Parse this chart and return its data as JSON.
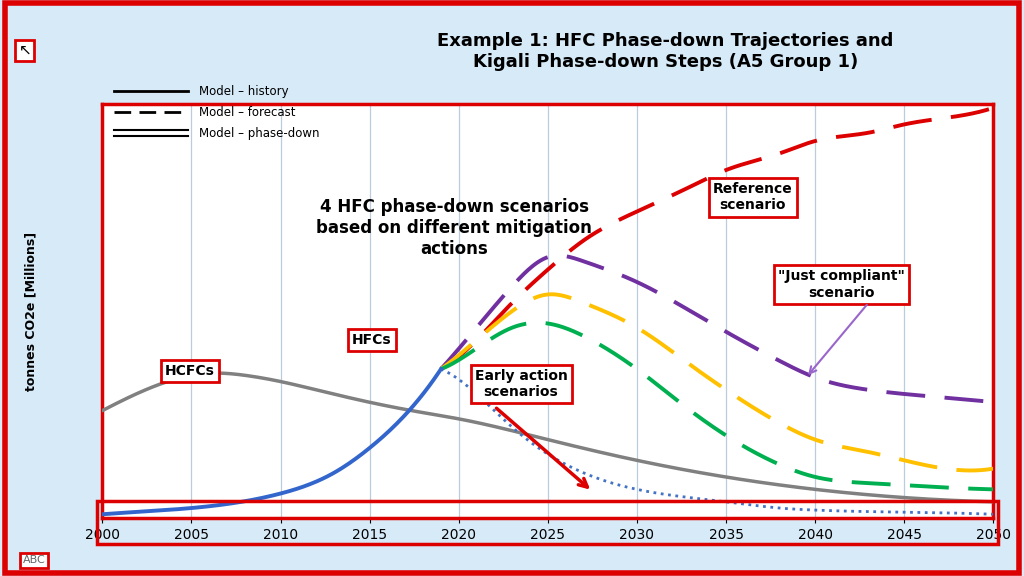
{
  "title": "Example 1: HFC Phase-down Trajectories and\nKigali Phase-down Steps (A5 Group 1)",
  "ylabel": "tonnes CO2e [Millions]",
  "xmin": 2000,
  "xmax": 2050,
  "ymin": 0,
  "ymax": 1.0,
  "bg_color": "#d6eaf8",
  "plot_bg_color": "#ffffff",
  "border_color": "#dd0000",
  "grid_color": "#bbccdd",
  "title_bg_color": "#f5e642",
  "hcfc_label": "HCFCs",
  "hfc_label": "HFCs",
  "ref_label": "Reference\nscenario",
  "jc_label": "\"Just compliant\"\nscenario",
  "ea_label": "Early action\nscenarios",
  "midtext": "4 HFC phase-down scenarios\nbased on different mitigation\nactions",
  "legend_entries": [
    "Model – history",
    "Model – forecast",
    "Model – phase-down"
  ],
  "hcfc_x": [
    2000,
    2003,
    2006,
    2008,
    2010,
    2012,
    2015,
    2018,
    2020,
    2025,
    2030,
    2040,
    2050
  ],
  "hcfc_y": [
    0.26,
    0.32,
    0.35,
    0.345,
    0.33,
    0.31,
    0.28,
    0.255,
    0.24,
    0.19,
    0.14,
    0.07,
    0.04
  ],
  "hfc_hist_x": [
    2000,
    2005,
    2010,
    2013,
    2015,
    2017,
    2019
  ],
  "hfc_hist_y": [
    0.01,
    0.025,
    0.06,
    0.11,
    0.17,
    0.25,
    0.36
  ],
  "ref_x": [
    2019,
    2021,
    2023,
    2025,
    2027,
    2030,
    2033,
    2035,
    2038,
    2040,
    2043,
    2045,
    2048,
    2050
  ],
  "ref_y": [
    0.36,
    0.43,
    0.52,
    0.6,
    0.67,
    0.74,
    0.8,
    0.84,
    0.88,
    0.91,
    0.93,
    0.95,
    0.97,
    0.99
  ],
  "jc_x": [
    2019,
    2021,
    2023,
    2025,
    2027,
    2030,
    2033,
    2035,
    2038,
    2040,
    2043,
    2045,
    2050
  ],
  "jc_y": [
    0.36,
    0.46,
    0.56,
    0.63,
    0.62,
    0.57,
    0.5,
    0.45,
    0.38,
    0.34,
    0.31,
    0.3,
    0.28
  ],
  "yellow_x": [
    2019,
    2021,
    2023,
    2025,
    2027,
    2030,
    2033,
    2035,
    2038,
    2040,
    2043,
    2045,
    2050
  ],
  "yellow_y": [
    0.36,
    0.43,
    0.5,
    0.54,
    0.52,
    0.46,
    0.37,
    0.31,
    0.23,
    0.19,
    0.16,
    0.14,
    0.12
  ],
  "green_x": [
    2019,
    2021,
    2023,
    2025,
    2027,
    2030,
    2033,
    2035,
    2038,
    2040,
    2043,
    2045,
    2050
  ],
  "green_y": [
    0.36,
    0.41,
    0.46,
    0.47,
    0.44,
    0.36,
    0.26,
    0.2,
    0.13,
    0.1,
    0.085,
    0.08,
    0.07
  ],
  "kigali_x": [
    2019,
    2021,
    2023,
    2025,
    2027,
    2030,
    2033,
    2035,
    2038,
    2040,
    2045,
    2050
  ],
  "kigali_y": [
    0.36,
    0.3,
    0.22,
    0.155,
    0.11,
    0.07,
    0.05,
    0.04,
    0.025,
    0.02,
    0.015,
    0.01
  ]
}
